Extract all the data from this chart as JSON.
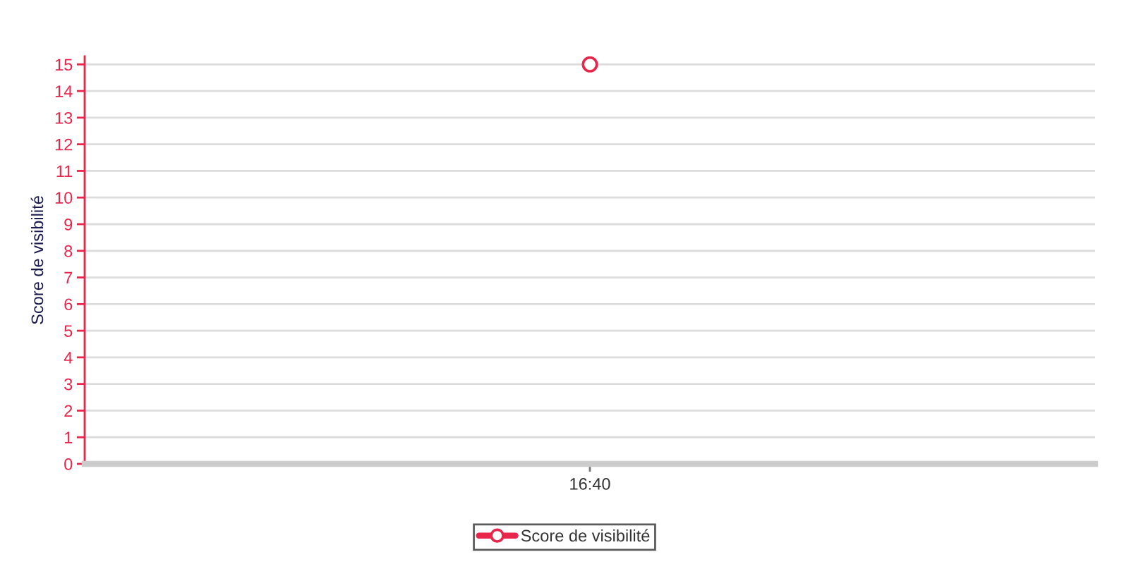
{
  "chart_data": {
    "type": "line",
    "ylabel": "Score de visibilité",
    "categories": [
      "16:40"
    ],
    "series": [
      {
        "name": "Score de visibilité",
        "color": "#e8254a",
        "values": [
          15
        ]
      }
    ],
    "ylim": [
      0,
      15.3
    ],
    "yticks": [
      0,
      1,
      2,
      3,
      4,
      5,
      6,
      7,
      8,
      9,
      10,
      11,
      12,
      13,
      14,
      15
    ],
    "grid": "y",
    "legend": "bottom",
    "marker": "circle",
    "line_style": "solid"
  }
}
